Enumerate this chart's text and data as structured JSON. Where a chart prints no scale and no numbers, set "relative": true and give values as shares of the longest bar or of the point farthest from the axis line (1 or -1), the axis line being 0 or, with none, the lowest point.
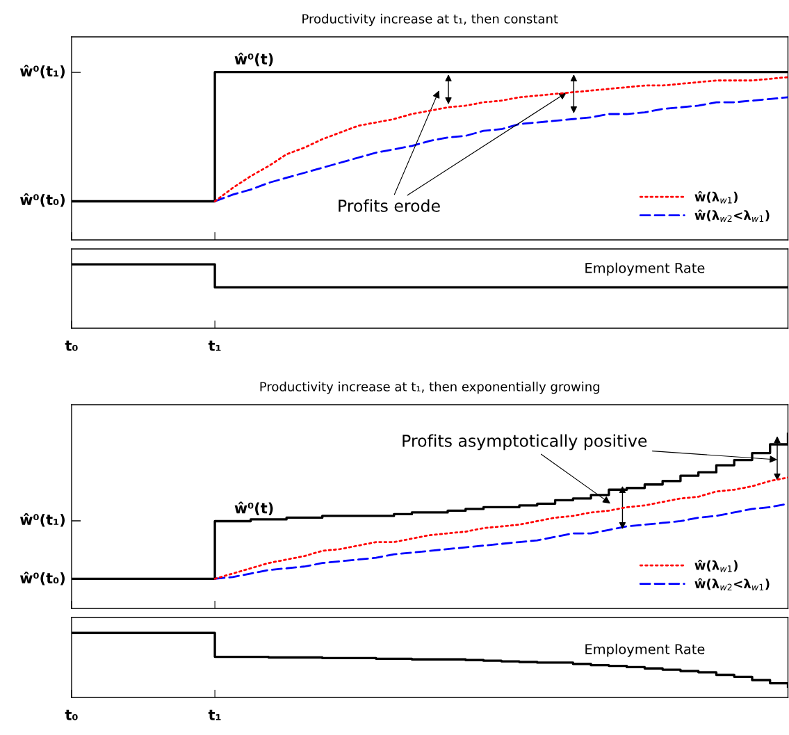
{
  "chart_data": [
    {
      "type": "line",
      "relative": true,
      "title": "Productivity increase at t₁, then constant",
      "categories": [
        null,
        null,
        null,
        null,
        null,
        null,
        null,
        null,
        null,
        null,
        null,
        null,
        null,
        null,
        null,
        null,
        null,
        null,
        null,
        null,
        null,
        null,
        null,
        null,
        null,
        null,
        null,
        null,
        null,
        null,
        null,
        null,
        null,
        null,
        null,
        null,
        null,
        null,
        null,
        null,
        null
      ],
      "tick_labels": false,
      "legend": "bottom right",
      "series": [
        {
          "name": "ŵ⁰(t)",
          "type": "step",
          "color": "#000000",
          "line_style": "solid",
          "values": [
            0.23,
            0.23,
            0.23,
            0.23,
            0.23,
            0.23,
            0.23,
            0.23,
            1,
            1,
            1,
            1,
            1,
            1,
            1,
            1,
            1,
            1,
            1,
            1,
            1,
            1,
            1,
            1,
            1,
            1,
            1,
            1,
            1,
            1,
            1,
            1,
            1,
            1,
            1,
            1,
            1,
            1,
            1,
            1,
            1
          ]
        },
        {
          "name": "ŵ(λ$_{w1}$)",
          "color": "#ff0000",
          "line_style": "dotted",
          "values": [
            null,
            null,
            null,
            null,
            null,
            null,
            null,
            null,
            0.23,
            0.31,
            0.38,
            0.44,
            0.51,
            0.55,
            0.6,
            0.64,
            0.68,
            0.7,
            0.72,
            0.75,
            0.77,
            0.79,
            0.8,
            0.82,
            0.83,
            0.85,
            0.86,
            0.87,
            0.88,
            0.89,
            0.9,
            0.91,
            0.92,
            0.92,
            0.93,
            0.94,
            0.95,
            0.95,
            0.95,
            0.96,
            0.97
          ]
        },
        {
          "name": "ŵ(λ$_{w2}$<λ$_{w1}$)",
          "color": "#0000ff",
          "line_style": "dashed",
          "values": [
            null,
            null,
            null,
            null,
            null,
            null,
            null,
            null,
            0.23,
            0.27,
            0.3,
            0.34,
            0.37,
            0.4,
            0.43,
            0.46,
            0.49,
            0.52,
            0.54,
            0.56,
            0.59,
            0.61,
            0.62,
            0.65,
            0.66,
            0.69,
            0.7,
            0.71,
            0.72,
            0.73,
            0.75,
            0.75,
            0.76,
            0.78,
            0.79,
            0.8,
            0.82,
            0.82,
            0.83,
            0.84,
            0.85
          ]
        }
      ],
      "annotations": [
        "ŵ⁰(t₁)",
        "ŵ⁰(t₀)",
        "Profits erode"
      ]
    },
    {
      "type": "line",
      "relative": true,
      "categories": [
        "t₀",
        null,
        null,
        null,
        null,
        null,
        null,
        null,
        "t₁",
        null,
        null,
        null,
        null,
        null,
        null,
        null,
        null,
        null,
        null,
        null,
        null,
        null,
        null,
        null,
        null,
        null,
        null,
        null,
        null,
        null,
        null,
        null,
        null,
        null,
        null,
        null,
        null,
        null,
        null,
        null,
        null
      ],
      "tick_labels": "x",
      "series": [
        {
          "name": "Employment Rate",
          "type": "step",
          "color": "#000000",
          "line_style": "solid",
          "values": [
            1,
            1,
            1,
            1,
            1,
            1,
            1,
            1,
            0.64,
            0.64,
            0.64,
            0.64,
            0.64,
            0.64,
            0.64,
            0.64,
            0.64,
            0.64,
            0.64,
            0.64,
            0.64,
            0.64,
            0.64,
            0.64,
            0.64,
            0.64,
            0.64,
            0.64,
            0.64,
            0.64,
            0.64,
            0.64,
            0.64,
            0.64,
            0.64,
            0.64,
            0.64,
            0.64,
            0.64,
            0.64,
            0.64
          ]
        }
      ]
    },
    {
      "type": "line",
      "relative": true,
      "title": "Productivity increase at t₁, then exponentially growing",
      "categories": [
        null,
        null,
        null,
        null,
        null,
        null,
        null,
        null,
        null,
        null,
        null,
        null,
        null,
        null,
        null,
        null,
        null,
        null,
        null,
        null,
        null,
        null,
        null,
        null,
        null,
        null,
        null,
        null,
        null,
        null,
        null,
        null,
        null,
        null,
        null,
        null,
        null,
        null,
        null,
        null,
        null
      ],
      "tick_labels": false,
      "legend": "bottom right",
      "series": [
        {
          "name": "ŵ⁰(t)",
          "type": "step",
          "color": "#000000",
          "line_style": "solid",
          "values": [
            0.17,
            0.17,
            0.17,
            0.17,
            0.17,
            0.17,
            0.17,
            0.17,
            0.5,
            0.5,
            0.51,
            0.51,
            0.52,
            0.52,
            0.53,
            0.53,
            0.53,
            0.53,
            0.54,
            0.55,
            0.55,
            0.56,
            0.57,
            0.58,
            0.58,
            0.59,
            0.6,
            0.62,
            0.63,
            0.65,
            0.68,
            0.69,
            0.71,
            0.73,
            0.76,
            0.78,
            0.82,
            0.85,
            0.89,
            0.94,
            1
          ]
        },
        {
          "name": "ŵ(λ$_{w1}$)",
          "color": "#ff0000",
          "line_style": "dotted",
          "values": [
            null,
            null,
            null,
            null,
            null,
            null,
            null,
            null,
            0.17,
            0.2,
            0.23,
            0.26,
            0.28,
            0.3,
            0.33,
            0.34,
            0.36,
            0.38,
            0.38,
            0.4,
            0.42,
            0.43,
            0.44,
            0.46,
            0.47,
            0.48,
            0.5,
            0.52,
            0.53,
            0.55,
            0.56,
            0.58,
            0.59,
            0.61,
            0.63,
            0.64,
            0.67,
            0.68,
            0.7,
            0.73,
            0.75
          ]
        },
        {
          "name": "ŵ(λ$_{w2}$<λ$_{w1}$)",
          "color": "#0000ff",
          "line_style": "dashed",
          "values": [
            null,
            null,
            null,
            null,
            null,
            null,
            null,
            null,
            0.17,
            0.18,
            0.2,
            0.22,
            0.23,
            0.24,
            0.26,
            0.27,
            0.28,
            0.29,
            0.31,
            0.32,
            0.33,
            0.34,
            0.35,
            0.36,
            0.37,
            0.38,
            0.39,
            0.41,
            0.43,
            0.43,
            0.45,
            0.47,
            0.48,
            0.49,
            0.5,
            0.52,
            0.53,
            0.55,
            0.57,
            0.58,
            0.6
          ]
        }
      ],
      "annotations": [
        "ŵ⁰(t₁)",
        "ŵ⁰(t₀)",
        "Profits asymptotically positive"
      ]
    },
    {
      "type": "line",
      "relative": true,
      "categories": [
        "t₀",
        null,
        null,
        null,
        null,
        null,
        null,
        null,
        "t₁",
        null,
        null,
        null,
        null,
        null,
        null,
        null,
        null,
        null,
        null,
        null,
        null,
        null,
        null,
        null,
        null,
        null,
        null,
        null,
        null,
        null,
        null,
        null,
        null,
        null,
        null,
        null,
        null,
        null,
        null,
        null,
        null
      ],
      "tick_labels": "x",
      "series": [
        {
          "name": "Employment Rate",
          "type": "step",
          "color": "#000000",
          "line_style": "solid",
          "values": [
            1,
            1,
            1,
            1,
            1,
            1,
            1,
            1,
            0.63,
            0.63,
            0.63,
            0.62,
            0.62,
            0.62,
            0.61,
            0.61,
            0.61,
            0.6,
            0.6,
            0.59,
            0.59,
            0.59,
            0.58,
            0.57,
            0.56,
            0.55,
            0.54,
            0.54,
            0.52,
            0.5,
            0.49,
            0.47,
            0.45,
            0.43,
            0.41,
            0.39,
            0.35,
            0.32,
            0.27,
            0.22,
            0.17
          ]
        }
      ]
    }
  ]
}
